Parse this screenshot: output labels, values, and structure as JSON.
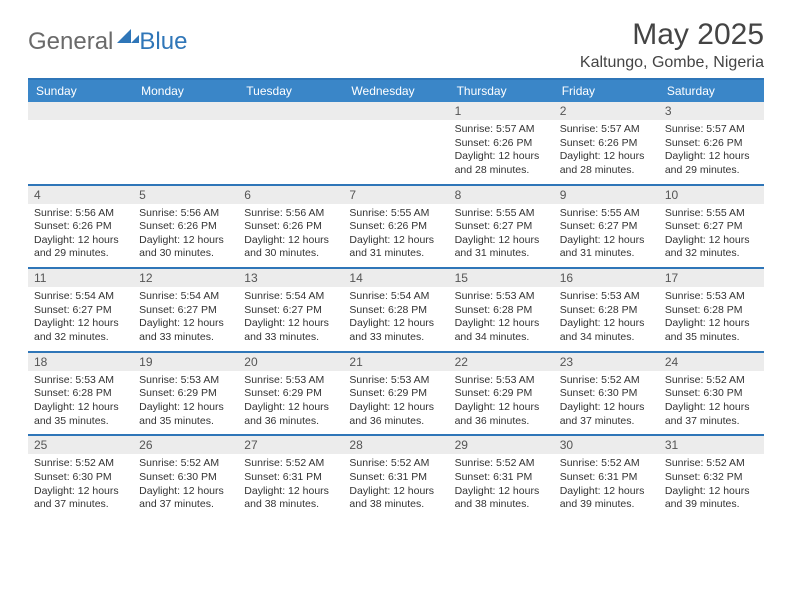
{
  "brand": {
    "general": "General",
    "blue": "Blue"
  },
  "title": "May 2025",
  "location": "Kaltungo, Gombe, Nigeria",
  "style": {
    "header_bg": "#3a86c8",
    "rule_color": "#2f76b8",
    "daynum_bg": "#ececec",
    "page_bg": "#ffffff",
    "text_color": "#333333",
    "brand_gray": "#6a6a6a",
    "brand_blue": "#2f76b8",
    "font_family": "Arial",
    "daytext_fontsize": 10.5,
    "dayhead_fontsize": 12,
    "title_fontsize": 30,
    "location_fontsize": 16
  },
  "days_of_week": [
    "Sunday",
    "Monday",
    "Tuesday",
    "Wednesday",
    "Thursday",
    "Friday",
    "Saturday"
  ],
  "weeks": [
    [
      {
        "n": "",
        "sr": "",
        "ss": "",
        "dl": ""
      },
      {
        "n": "",
        "sr": "",
        "ss": "",
        "dl": ""
      },
      {
        "n": "",
        "sr": "",
        "ss": "",
        "dl": ""
      },
      {
        "n": "",
        "sr": "",
        "ss": "",
        "dl": ""
      },
      {
        "n": "1",
        "sr": "5:57 AM",
        "ss": "6:26 PM",
        "dl": "12 hours and 28 minutes."
      },
      {
        "n": "2",
        "sr": "5:57 AM",
        "ss": "6:26 PM",
        "dl": "12 hours and 28 minutes."
      },
      {
        "n": "3",
        "sr": "5:57 AM",
        "ss": "6:26 PM",
        "dl": "12 hours and 29 minutes."
      }
    ],
    [
      {
        "n": "4",
        "sr": "5:56 AM",
        "ss": "6:26 PM",
        "dl": "12 hours and 29 minutes."
      },
      {
        "n": "5",
        "sr": "5:56 AM",
        "ss": "6:26 PM",
        "dl": "12 hours and 30 minutes."
      },
      {
        "n": "6",
        "sr": "5:56 AM",
        "ss": "6:26 PM",
        "dl": "12 hours and 30 minutes."
      },
      {
        "n": "7",
        "sr": "5:55 AM",
        "ss": "6:26 PM",
        "dl": "12 hours and 31 minutes."
      },
      {
        "n": "8",
        "sr": "5:55 AM",
        "ss": "6:27 PM",
        "dl": "12 hours and 31 minutes."
      },
      {
        "n": "9",
        "sr": "5:55 AM",
        "ss": "6:27 PM",
        "dl": "12 hours and 31 minutes."
      },
      {
        "n": "10",
        "sr": "5:55 AM",
        "ss": "6:27 PM",
        "dl": "12 hours and 32 minutes."
      }
    ],
    [
      {
        "n": "11",
        "sr": "5:54 AM",
        "ss": "6:27 PM",
        "dl": "12 hours and 32 minutes."
      },
      {
        "n": "12",
        "sr": "5:54 AM",
        "ss": "6:27 PM",
        "dl": "12 hours and 33 minutes."
      },
      {
        "n": "13",
        "sr": "5:54 AM",
        "ss": "6:27 PM",
        "dl": "12 hours and 33 minutes."
      },
      {
        "n": "14",
        "sr": "5:54 AM",
        "ss": "6:28 PM",
        "dl": "12 hours and 33 minutes."
      },
      {
        "n": "15",
        "sr": "5:53 AM",
        "ss": "6:28 PM",
        "dl": "12 hours and 34 minutes."
      },
      {
        "n": "16",
        "sr": "5:53 AM",
        "ss": "6:28 PM",
        "dl": "12 hours and 34 minutes."
      },
      {
        "n": "17",
        "sr": "5:53 AM",
        "ss": "6:28 PM",
        "dl": "12 hours and 35 minutes."
      }
    ],
    [
      {
        "n": "18",
        "sr": "5:53 AM",
        "ss": "6:28 PM",
        "dl": "12 hours and 35 minutes."
      },
      {
        "n": "19",
        "sr": "5:53 AM",
        "ss": "6:29 PM",
        "dl": "12 hours and 35 minutes."
      },
      {
        "n": "20",
        "sr": "5:53 AM",
        "ss": "6:29 PM",
        "dl": "12 hours and 36 minutes."
      },
      {
        "n": "21",
        "sr": "5:53 AM",
        "ss": "6:29 PM",
        "dl": "12 hours and 36 minutes."
      },
      {
        "n": "22",
        "sr": "5:53 AM",
        "ss": "6:29 PM",
        "dl": "12 hours and 36 minutes."
      },
      {
        "n": "23",
        "sr": "5:52 AM",
        "ss": "6:30 PM",
        "dl": "12 hours and 37 minutes."
      },
      {
        "n": "24",
        "sr": "5:52 AM",
        "ss": "6:30 PM",
        "dl": "12 hours and 37 minutes."
      }
    ],
    [
      {
        "n": "25",
        "sr": "5:52 AM",
        "ss": "6:30 PM",
        "dl": "12 hours and 37 minutes."
      },
      {
        "n": "26",
        "sr": "5:52 AM",
        "ss": "6:30 PM",
        "dl": "12 hours and 37 minutes."
      },
      {
        "n": "27",
        "sr": "5:52 AM",
        "ss": "6:31 PM",
        "dl": "12 hours and 38 minutes."
      },
      {
        "n": "28",
        "sr": "5:52 AM",
        "ss": "6:31 PM",
        "dl": "12 hours and 38 minutes."
      },
      {
        "n": "29",
        "sr": "5:52 AM",
        "ss": "6:31 PM",
        "dl": "12 hours and 38 minutes."
      },
      {
        "n": "30",
        "sr": "5:52 AM",
        "ss": "6:31 PM",
        "dl": "12 hours and 39 minutes."
      },
      {
        "n": "31",
        "sr": "5:52 AM",
        "ss": "6:32 PM",
        "dl": "12 hours and 39 minutes."
      }
    ]
  ],
  "labels": {
    "sunrise": "Sunrise:",
    "sunset": "Sunset:",
    "daylight": "Daylight:"
  }
}
